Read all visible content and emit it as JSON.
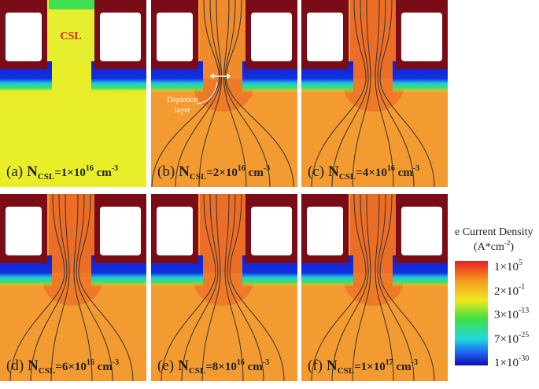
{
  "panels": [
    {
      "label": "(a)",
      "n": "N",
      "n_sub": "CSL",
      "n_mid": "=1×10",
      "n_exp": "16",
      "unit": " cm",
      "unit_exp": "-3"
    },
    {
      "label": "(b)",
      "n": "N",
      "n_sub": "CSL",
      "n_mid": "=2×10",
      "n_exp": "16",
      "unit": " cm",
      "unit_exp": "-3"
    },
    {
      "label": "(c)",
      "n": "N",
      "n_sub": "CSL",
      "n_mid": "=4×10",
      "n_exp": "16",
      "unit": " cm",
      "unit_exp": "-3"
    },
    {
      "label": "(d)",
      "n": "N",
      "n_sub": "CSL",
      "n_mid": "=6×10",
      "n_exp": "16",
      "unit": " cm",
      "unit_exp": "-3"
    },
    {
      "label": "(e)",
      "n": "N",
      "n_sub": "CSL",
      "n_mid": "=8×10",
      "n_exp": "16",
      "unit": " cm",
      "unit_exp": "-3"
    },
    {
      "label": "(f)",
      "n": "N",
      "n_sub": "CSL",
      "n_mid": "=1×10",
      "n_exp": "17",
      "unit": " cm",
      "unit_exp": "-3"
    }
  ],
  "annotations": {
    "csl": "CSL",
    "depletion": [
      "Depletion",
      "layer"
    ]
  },
  "colorbar": {
    "title": "e Current Density",
    "unit_open": "(A*cm",
    "unit_exp": "-2",
    "unit_close": ")",
    "ticks": [
      {
        "base": "1×10",
        "exp": "5"
      },
      {
        "base": "2×10",
        "exp": "-1"
      },
      {
        "base": "3×10",
        "exp": "-13"
      },
      {
        "base": "7×10",
        "exp": "-25"
      },
      {
        "base": "1×10",
        "exp": "-30"
      }
    ]
  }
}
